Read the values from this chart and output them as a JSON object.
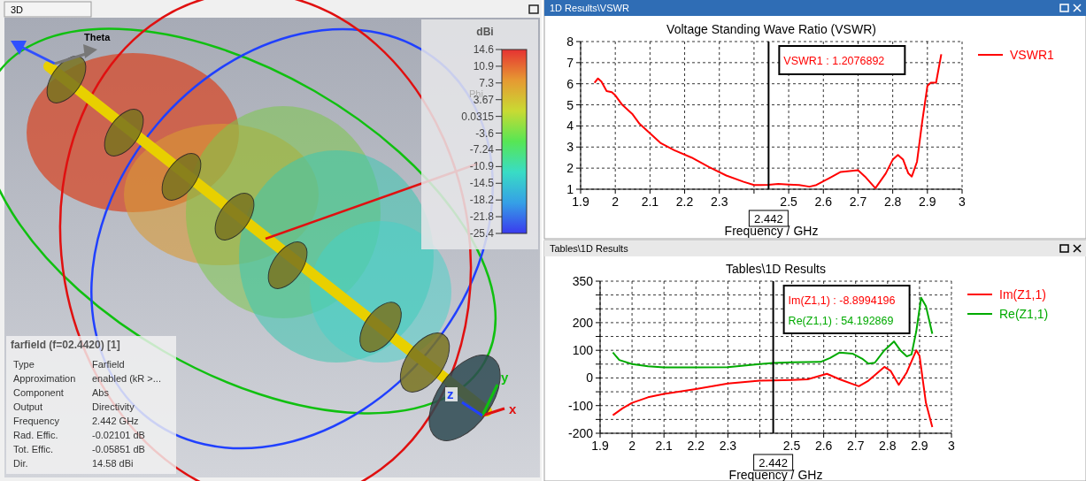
{
  "chart_data": [
    {
      "type": "other",
      "title": "3D",
      "clabel": "dBi",
      "annotations": [
        "14.6",
        "10.9",
        "7.3",
        "3.67",
        "0.0315",
        "-3.6",
        "-7.24",
        "-10.9",
        "-14.5",
        "-18.2",
        "-21.8",
        "-25.4",
        "Theta",
        "Phi",
        "x",
        "y",
        "z",
        "farfield (f=02.4420) [1]",
        "Type",
        "Farfield",
        "Approximation",
        "enabled (kR >...",
        "Component",
        "Abs",
        "Output",
        "Directivity",
        "Frequency",
        "2.442 GHz",
        "Rad. Effic.",
        "-0.02101 dB",
        "Tot. Effic.",
        "-0.05851 dB",
        "Dir.",
        "14.58 dBi"
      ]
    },
    {
      "type": "line",
      "title": "Voltage Standing Wave Ratio (VSWR)",
      "xlabel": "Frequency / GHz",
      "legend": "right",
      "grid": true,
      "xlim": [
        1.9,
        3
      ],
      "xticks": [
        1.9,
        2,
        2.1,
        2.2,
        2.3,
        {
          "value": 2.4,
          "label": null
        },
        2.5,
        2.6,
        2.7,
        2.8,
        2.9,
        3
      ],
      "ylim": [
        1,
        8
      ],
      "yticks": [
        1,
        2,
        3,
        4,
        5,
        6,
        7,
        8
      ],
      "ref_lines": [
        {
          "axis": "x",
          "value": 2.442,
          "label": "2.442",
          "color": "#000000"
        }
      ],
      "annotations": [
        "1D Results\\VSWR",
        "VSWR1 : 1.2076892"
      ],
      "series": [
        {
          "name": "VSWR1",
          "color": "#ff0000",
          "x": [
            1.94,
            1.95,
            1.96,
            1.975,
            1.99,
            2.0,
            2.02,
            2.05,
            2.07,
            2.1,
            2.13,
            2.17,
            2.22,
            2.27,
            2.32,
            2.37,
            2.4,
            2.42,
            2.442,
            2.47,
            2.5,
            2.53,
            2.56,
            2.58,
            2.62,
            2.65,
            2.7,
            2.72,
            2.75,
            2.78,
            2.8,
            2.815,
            2.83,
            2.845,
            2.855,
            2.87,
            2.885,
            2.9,
            2.91,
            2.925,
            2.94
          ],
          "values": [
            6.05,
            6.25,
            6.1,
            5.65,
            5.6,
            5.45,
            5.0,
            4.55,
            4.1,
            3.65,
            3.2,
            2.85,
            2.5,
            2.05,
            1.65,
            1.35,
            1.2,
            1.2,
            1.21,
            1.25,
            1.22,
            1.2,
            1.12,
            1.2,
            1.55,
            1.82,
            1.9,
            1.6,
            1.05,
            1.75,
            2.4,
            2.62,
            2.4,
            1.75,
            1.6,
            2.3,
            4.2,
            5.9,
            6.05,
            6.05,
            7.4
          ]
        }
      ]
    },
    {
      "type": "line",
      "title": "Tables\\1D Results",
      "xlabel": "Frequency / GHz",
      "legend": "right",
      "grid": true,
      "xlim": [
        1.9,
        3
      ],
      "xticks": [
        1.9,
        2,
        2.1,
        2.2,
        2.3,
        {
          "value": 2.4,
          "label": null
        },
        2.5,
        2.6,
        2.7,
        2.8,
        2.9,
        3
      ],
      "ylim": [
        -200,
        350
      ],
      "yticks": [
        -200,
        {
          "value": -150,
          "label": null
        },
        -100,
        {
          "value": -50,
          "label": null
        },
        0,
        {
          "value": 50,
          "label": null
        },
        100,
        {
          "value": 150,
          "label": null
        },
        200,
        {
          "value": 250,
          "label": null
        },
        {
          "value": 300,
          "label": null
        },
        350
      ],
      "ref_lines": [
        {
          "axis": "x",
          "value": 2.442,
          "label": "2.442",
          "color": "#000000"
        }
      ],
      "annotations": [
        "Tables\\1D Results",
        "Im(Z1,1) : -8.8994196",
        "Re(Z1,1) : 54.192869"
      ],
      "series": [
        {
          "name": "Im(Z1,1)",
          "color": "#ff0000",
          "x": [
            1.94,
            1.97,
            2.0,
            2.05,
            2.1,
            2.2,
            2.3,
            2.4,
            2.442,
            2.5,
            2.55,
            2.61,
            2.65,
            2.71,
            2.74,
            2.79,
            2.81,
            2.835,
            2.86,
            2.89,
            2.9,
            2.92,
            2.94
          ],
          "values": [
            -135,
            -110,
            -90,
            -70,
            -58,
            -40,
            -20,
            -10,
            -9,
            -7,
            -5,
            15,
            -5,
            -30,
            -10,
            40,
            25,
            -25,
            20,
            100,
            80,
            -90,
            -178
          ]
        },
        {
          "name": "Re(Z1,1)",
          "color": "#00aa00",
          "x": [
            1.94,
            1.96,
            2.0,
            2.05,
            2.1,
            2.2,
            2.3,
            2.4,
            2.442,
            2.5,
            2.59,
            2.62,
            2.65,
            2.69,
            2.72,
            2.74,
            2.76,
            2.79,
            2.82,
            2.84,
            2.86,
            2.875,
            2.89,
            2.905,
            2.92,
            2.94
          ],
          "values": [
            92,
            65,
            50,
            42,
            38,
            38,
            39,
            50,
            54,
            57,
            58,
            72,
            92,
            88,
            70,
            52,
            55,
            100,
            132,
            100,
            78,
            85,
            170,
            290,
            260,
            160
          ]
        }
      ]
    }
  ]
}
